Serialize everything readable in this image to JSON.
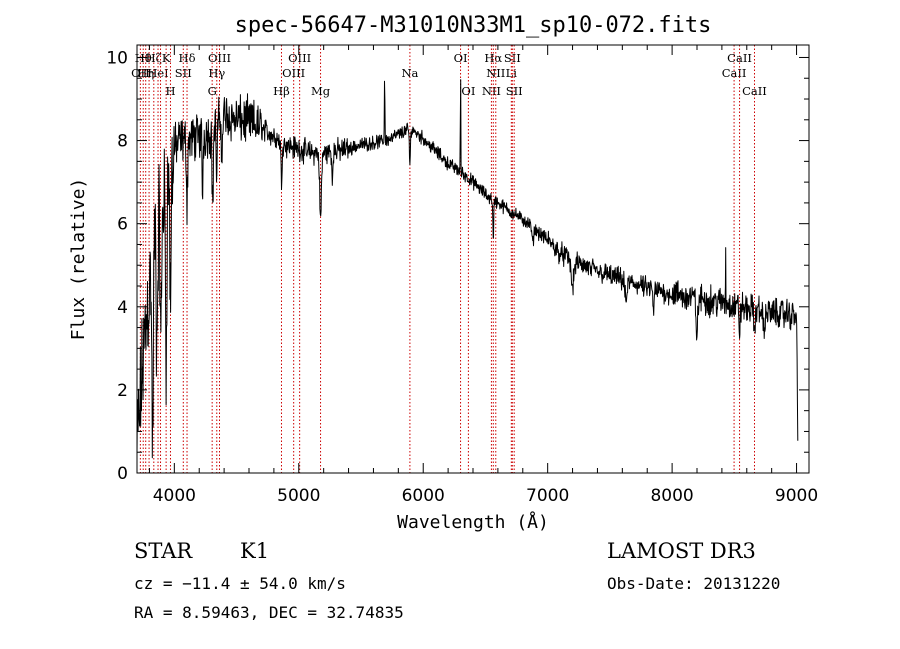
{
  "chart_data": {
    "type": "line",
    "title": "spec-56647-M31010N33M1_sp10-072.fits",
    "xlabel": "Wavelength (Å)",
    "ylabel": "Flux (relative)",
    "xlim": [
      3700,
      9100
    ],
    "ylim": [
      0,
      10.3
    ],
    "xticks": [
      4000,
      5000,
      6000,
      7000,
      8000,
      9000
    ],
    "yticks": [
      0,
      2,
      4,
      6,
      8,
      10
    ],
    "continuum": {
      "x": [
        3700,
        3750,
        3800,
        3850,
        3900,
        3950,
        4000,
        4050,
        4100,
        4200,
        4300,
        4400,
        4500,
        4600,
        4700,
        4800,
        4900,
        5000,
        5100,
        5200,
        5300,
        5400,
        5500,
        5600,
        5700,
        5800,
        5900,
        6000,
        6100,
        6200,
        6300,
        6400,
        6500,
        6600,
        6700,
        6800,
        6900,
        7000,
        7100,
        7200,
        7400,
        7600,
        7800,
        8000,
        8200,
        8400,
        8600,
        8800,
        9000,
        9010
      ],
      "y": [
        0.5,
        2.8,
        4.5,
        5.8,
        6.4,
        7.0,
        7.8,
        8.0,
        8.0,
        8.1,
        8.2,
        8.6,
        8.5,
        8.45,
        8.3,
        8.1,
        7.9,
        7.8,
        7.7,
        7.7,
        7.75,
        7.8,
        7.9,
        7.95,
        8.0,
        8.15,
        8.3,
        8.05,
        7.75,
        7.45,
        7.25,
        7.0,
        6.7,
        6.5,
        6.3,
        6.1,
        5.85,
        5.6,
        5.3,
        5.1,
        4.85,
        4.65,
        4.45,
        4.3,
        4.2,
        4.1,
        3.95,
        3.85,
        3.8,
        0.8
      ]
    },
    "features": [
      {
        "x": 3825,
        "depth": -4.5,
        "width": 8
      },
      {
        "x": 3860,
        "depth": -3.0,
        "width": 8
      },
      {
        "x": 3892,
        "depth": -3.2,
        "width": 8
      },
      {
        "x": 3934,
        "depth": -4.0,
        "width": 7
      },
      {
        "x": 3969,
        "depth": -3.5,
        "width": 7
      },
      {
        "x": 4102,
        "depth": -1.6,
        "width": 6
      },
      {
        "x": 4227,
        "depth": -1.5,
        "width": 5
      },
      {
        "x": 4308,
        "depth": -2.0,
        "width": 6
      },
      {
        "x": 4341,
        "depth": -1.4,
        "width": 5
      },
      {
        "x": 4383,
        "depth": -1.2,
        "width": 5
      },
      {
        "x": 4861,
        "depth": -1.0,
        "width": 6
      },
      {
        "x": 5175,
        "depth": -1.6,
        "width": 10
      },
      {
        "x": 5269,
        "depth": -0.8,
        "width": 5
      },
      {
        "x": 5690,
        "depth": 1.6,
        "width": 3
      },
      {
        "x": 5893,
        "depth": -0.9,
        "width": 6
      },
      {
        "x": 6300,
        "depth": 3.0,
        "width": 2
      },
      {
        "x": 6563,
        "depth": -1.0,
        "width": 5
      },
      {
        "x": 6880,
        "depth": -0.4,
        "width": 8
      },
      {
        "x": 7200,
        "depth": -0.6,
        "width": 15
      },
      {
        "x": 7630,
        "depth": -0.5,
        "width": 12
      },
      {
        "x": 7850,
        "depth": -0.5,
        "width": 8
      },
      {
        "x": 8200,
        "depth": -0.8,
        "width": 10
      },
      {
        "x": 8430,
        "depth": 1.5,
        "width": 2
      },
      {
        "x": 8542,
        "depth": -0.6,
        "width": 6
      },
      {
        "x": 8662,
        "depth": -0.6,
        "width": 6
      },
      {
        "x": 8740,
        "depth": -0.7,
        "width": 6
      }
    ],
    "noise": [
      {
        "x_max": 4000,
        "amplitude": 1.8
      },
      {
        "x_max": 4700,
        "amplitude": 0.7
      },
      {
        "x_max": 5400,
        "amplitude": 0.35
      },
      {
        "x_max": 7000,
        "amplitude": 0.2
      },
      {
        "x_max": 8000,
        "amplitude": 0.32
      },
      {
        "x_max": 9100,
        "amplitude": 0.45
      }
    ],
    "line_markers": [
      {
        "x": 3727,
        "label": "OII",
        "row": 1
      },
      {
        "x": 3750,
        "label": "Hθ",
        "row": 0
      },
      {
        "x": 3770,
        "label": "Hη",
        "row": 1
      },
      {
        "x": 3797,
        "label": "",
        "row": 0
      },
      {
        "x": 3835,
        "label": "Hζ",
        "row": 0
      },
      {
        "x": 3869,
        "label": "HeI",
        "row": 1
      },
      {
        "x": 3889,
        "label": "",
        "row": 0
      },
      {
        "x": 3934,
        "label": "K",
        "row": 0
      },
      {
        "x": 3969,
        "label": "H",
        "row": 2
      },
      {
        "x": 4072,
        "label": "SII",
        "row": 1
      },
      {
        "x": 4102,
        "label": "Hδ",
        "row": 0
      },
      {
        "x": 4304,
        "label": "G",
        "row": 2
      },
      {
        "x": 4341,
        "label": "Hγ",
        "row": 1
      },
      {
        "x": 4363,
        "label": "OIII",
        "row": 0
      },
      {
        "x": 4861,
        "label": "Hβ",
        "row": 2
      },
      {
        "x": 4959,
        "label": "OIII",
        "row": 1
      },
      {
        "x": 5007,
        "label": "OIII",
        "row": 0
      },
      {
        "x": 5175,
        "label": "Mg",
        "row": 2
      },
      {
        "x": 5893,
        "label": "Na",
        "row": 1
      },
      {
        "x": 6300,
        "label": "OI",
        "row": 0
      },
      {
        "x": 6363,
        "label": "OI",
        "row": 2
      },
      {
        "x": 6548,
        "label": "NII",
        "row": 2
      },
      {
        "x": 6563,
        "label": "Hα",
        "row": 0
      },
      {
        "x": 6583,
        "label": "NII",
        "row": 1
      },
      {
        "x": 6708,
        "label": "Li",
        "row": 1
      },
      {
        "x": 6716,
        "label": "SII",
        "row": 0
      },
      {
        "x": 6731,
        "label": "SII",
        "row": 2
      },
      {
        "x": 8498,
        "label": "CaII",
        "row": 1
      },
      {
        "x": 8542,
        "label": "CaII",
        "row": 0
      },
      {
        "x": 8662,
        "label": "CaII",
        "row": 2
      }
    ],
    "colors": {
      "axis": "#000000",
      "spectrum": "#000000",
      "marker": "#cc0000"
    }
  },
  "info": {
    "class": "STAR",
    "subclass": "K1",
    "survey": "LAMOST DR3",
    "redshift": "cz = −11.4 ± 54.0 km/s",
    "obs_date": "Obs-Date: 20131220",
    "coords": "RA =   8.59463, DEC =  32.74835"
  }
}
